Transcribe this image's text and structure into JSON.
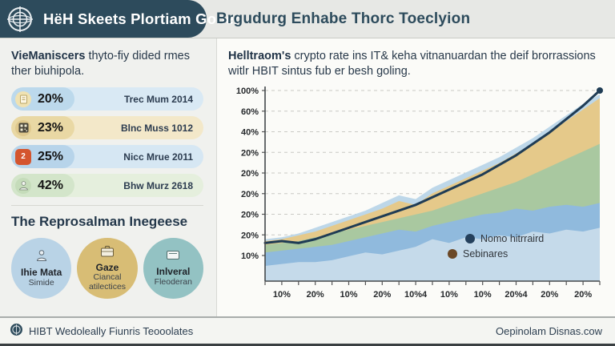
{
  "header": {
    "logo": "compass-globe-icon",
    "left_title": "HëH Skeets Plortiam Goner",
    "right_title": "Brgudurg Enhabe Thorc Toeclyion",
    "dark_color": "#2d4b5c"
  },
  "left_panel": {
    "intro_bold": "VieManiscers",
    "intro_rest": " thyto-fiy dided rmes ther biuhipola.",
    "stats": [
      {
        "value": "20%",
        "label": "Trec Mum 2014",
        "icon": "document-icon",
        "pill_dark": "#bcd9ec",
        "pill_light": "#d9e9f4",
        "chip_color": "#f0e2b2"
      },
      {
        "value": "23%",
        "label": "Blnc Muss 1012",
        "icon": "qr-code-icon",
        "pill_dark": "#e9d8a4",
        "pill_light": "#f3e8c9",
        "chip_color": "#dfc88d"
      },
      {
        "value": "25%",
        "label": "Nicc Mrue 2011",
        "icon": "badge-2-icon",
        "pill_dark": "#b7d4ea",
        "pill_light": "#d6e7f3",
        "chip_color": "#d4552e",
        "icon_text": "2"
      },
      {
        "value": "42%",
        "label": "Bhw Murz 2618",
        "icon": "person-icon",
        "pill_dark": "#d3e5ca",
        "pill_light": "#e5efdd",
        "chip_color": "#c5dcba"
      }
    ],
    "section_title": "The Reprosalman Inegeese",
    "circles": [
      {
        "name": "Ihie Mata",
        "sub": "Simide",
        "icon": "person-icon",
        "color": "#b9d3e6"
      },
      {
        "name": "Gaze",
        "sub": "Ciancal atilectices",
        "icon": "briefcase-icon",
        "color": "#d8bd75"
      },
      {
        "name": "Inlveral",
        "sub": "Fleoderan",
        "icon": "monitor-icon",
        "color": "#93c2c3"
      }
    ]
  },
  "right_panel": {
    "intro_bold": "Helltraom's",
    "intro_rest": " crypto rate ins IT& keha vitnanuardan the deif brorrassions witlr HBIT sintus fub er besh goling."
  },
  "chart_data": {
    "type": "area",
    "stacked": true,
    "grid": "dashed horizontal",
    "y_tick_labels": [
      "100%",
      "60%",
      "40%",
      "20%",
      "20%",
      "20%",
      "20%",
      "20%",
      "10%"
    ],
    "x_tick_labels": [
      "10%",
      "20%",
      "10%",
      "20%",
      "10%4",
      "10%",
      "10%",
      "20%4",
      "20%",
      "20%"
    ],
    "series": [
      {
        "name": "pale-blue-base",
        "color": "#c5daea",
        "cum_top": [
          8,
          9,
          10,
          10,
          11,
          13,
          15,
          14,
          16,
          18,
          22,
          20,
          23,
          22,
          24,
          23,
          26,
          25,
          27,
          26,
          28
        ]
      },
      {
        "name": "medium-blue",
        "color": "#90badd",
        "cum_top": [
          15,
          16,
          17,
          18,
          19,
          21,
          23,
          25,
          27,
          26,
          29,
          31,
          33,
          35,
          36,
          38,
          37,
          39,
          40,
          39,
          41
        ]
      },
      {
        "name": "sage-green",
        "color": "#a9c8a0",
        "cum_top": [
          19,
          20,
          21,
          23,
          25,
          27,
          29,
          31,
          33,
          35,
          37,
          40,
          43,
          46,
          49,
          52,
          56,
          60,
          64,
          68,
          72
        ]
      },
      {
        "name": "tan-gold",
        "color": "#e5c98a",
        "cum_top": [
          21,
          22,
          24,
          26,
          29,
          32,
          35,
          38,
          42,
          40,
          46,
          50,
          54,
          58,
          62,
          67,
          72,
          78,
          84,
          90,
          96
        ]
      },
      {
        "name": "pale-blue-top",
        "color": "#bdd7e9",
        "cum_top": [
          22,
          23,
          25,
          28,
          31,
          34,
          37,
          41,
          45,
          43,
          49,
          53,
          57,
          61,
          65,
          70,
          75,
          81,
          87,
          93,
          98
        ]
      }
    ],
    "line": {
      "name": "Nomo hitrraird",
      "color": "#1f3c55",
      "values": [
        20,
        21,
        20,
        22,
        25,
        28,
        31,
        34,
        37,
        40,
        44,
        48,
        52,
        56,
        61,
        66,
        72,
        78,
        85,
        92,
        100
      ]
    },
    "legend": [
      {
        "label": "Nomo hitrraird",
        "color": "#24405c"
      },
      {
        "label": "Sebinares",
        "color": "#6b4827"
      }
    ],
    "ylim": [
      0,
      100
    ]
  },
  "footer": {
    "left": "HIBT Wedoleally Fiunris Teooolates",
    "right": "Oepinolam Disnas.cow"
  }
}
